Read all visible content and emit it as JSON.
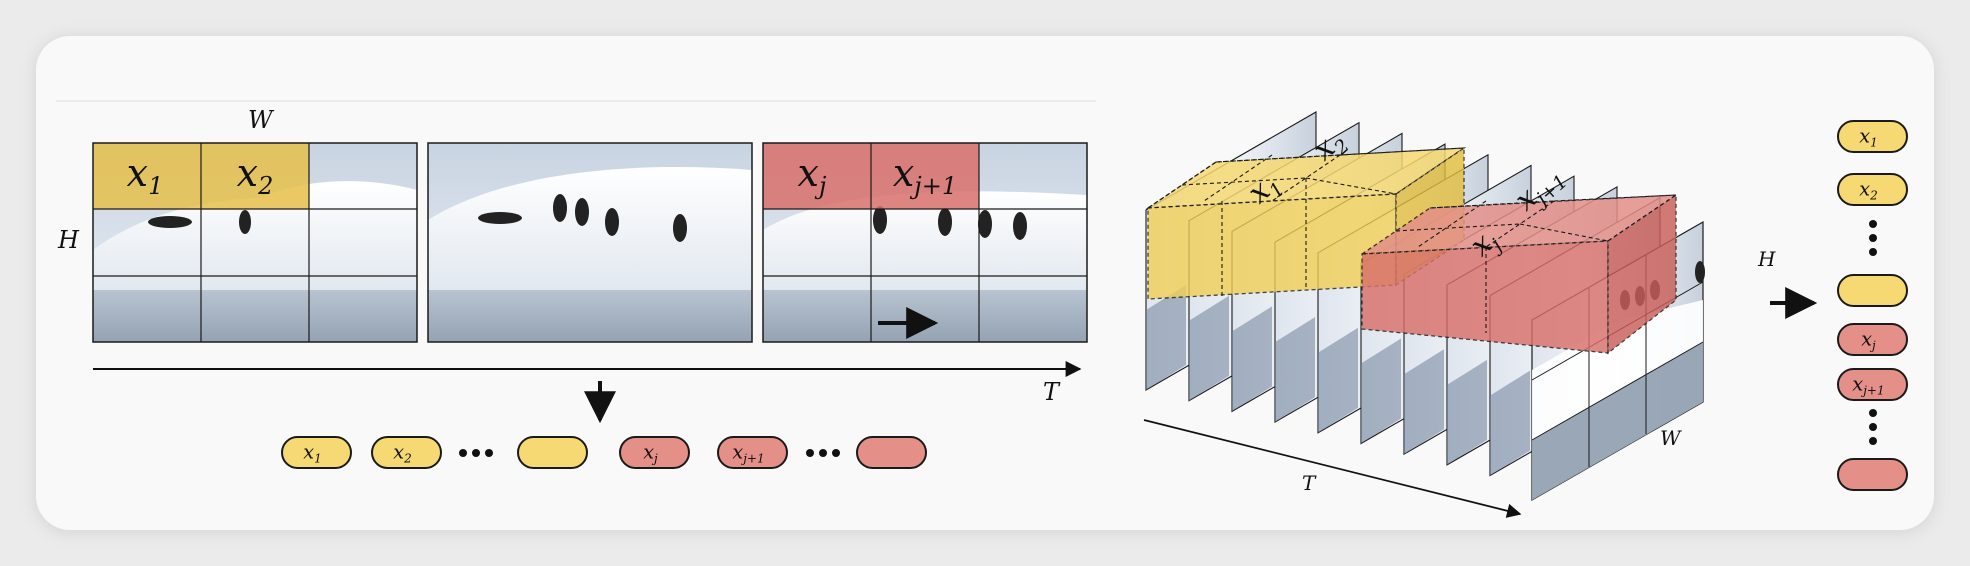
{
  "axes": {
    "left_width": "W",
    "left_height": "H",
    "left_time": "T",
    "right_height": "H",
    "right_width": "W",
    "right_time": "T"
  },
  "grid_tokens": [
    {
      "base": "x",
      "sub": "1"
    },
    {
      "base": "x",
      "sub": "2"
    },
    {
      "base": "x",
      "sub": "j"
    },
    {
      "base": "x",
      "sub": "j+1"
    }
  ],
  "left_sequence": [
    {
      "base": "x",
      "sub": "1",
      "color": "yellow"
    },
    {
      "base": "x",
      "sub": "2",
      "color": "yellow"
    },
    {
      "dots": true
    },
    {
      "base": "",
      "sub": "",
      "color": "yellow"
    },
    {
      "base": "x",
      "sub": "j",
      "color": "red"
    },
    {
      "base": "x",
      "sub": "j+1",
      "color": "red"
    },
    {
      "dots": true
    },
    {
      "base": "",
      "sub": "",
      "color": "red"
    }
  ],
  "cube_tokens": [
    {
      "base": "x",
      "sub": "1"
    },
    {
      "base": "x",
      "sub": "2"
    },
    {
      "base": "x",
      "sub": "j"
    },
    {
      "base": "x",
      "sub": "j+1"
    }
  ],
  "right_sequence": [
    {
      "base": "x",
      "sub": "1",
      "color": "yellow"
    },
    {
      "base": "x",
      "sub": "2",
      "color": "yellow"
    },
    {
      "dots": true
    },
    {
      "base": "",
      "sub": "",
      "color": "yellow"
    },
    {
      "base": "x",
      "sub": "j",
      "color": "red"
    },
    {
      "base": "x",
      "sub": "j+1",
      "color": "red"
    },
    {
      "dots": true
    },
    {
      "base": "",
      "sub": "",
      "color": "red"
    }
  ],
  "colors": {
    "yellow_fill": "#f6d972",
    "red_fill": "#e48f88",
    "yellow_patch": "#e6c04a",
    "red_patch": "#d9706b",
    "stroke": "#1a1a1a"
  }
}
